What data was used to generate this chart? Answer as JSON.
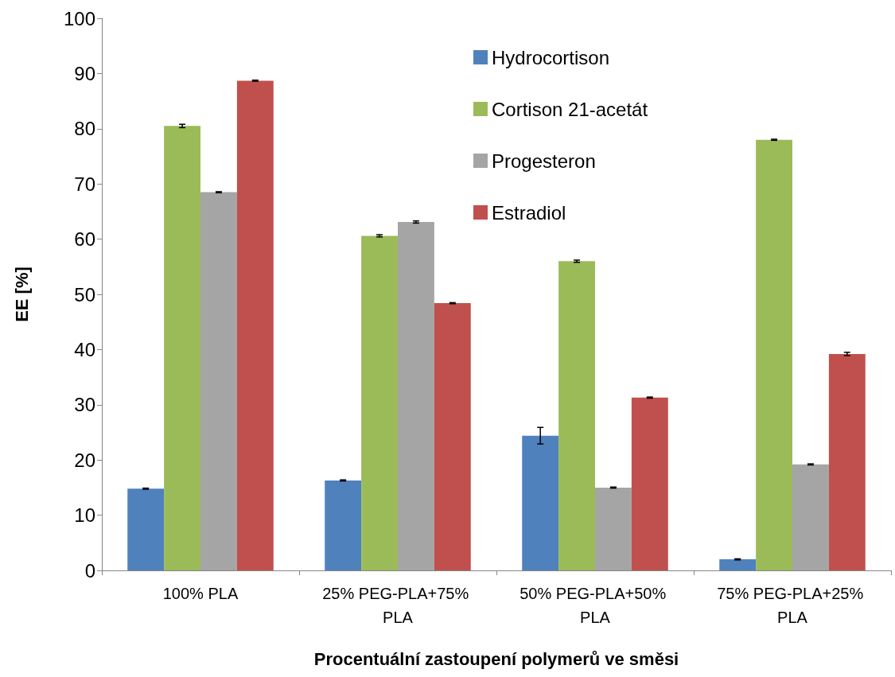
{
  "chart_data": {
    "type": "bar",
    "xlabel": "Procentuální zastoupení polymerů ve směsi",
    "ylabel": "EE [%]",
    "categories": [
      "100% PLA",
      "25% PEG-PLA+75% PLA",
      "50% PEG-PLA+50% PLA",
      "75% PEG-PLA+25% PLA"
    ],
    "series": [
      {
        "name": "Hydrocortison",
        "color": "#4f81bd",
        "values": [
          14.8,
          16.3,
          24.4,
          2.0
        ],
        "errors": [
          0.1,
          0.1,
          1.5,
          0.1
        ]
      },
      {
        "name": "Cortison 21-acetát",
        "color": "#9bbb59",
        "values": [
          80.5,
          60.6,
          56.0,
          78.0
        ],
        "errors": [
          0.3,
          0.2,
          0.2,
          0.1
        ]
      },
      {
        "name": "Progesteron",
        "color": "#a5a5a5",
        "values": [
          68.5,
          63.1,
          15.0,
          19.2
        ],
        "errors": [
          0.1,
          0.2,
          0.1,
          0.1
        ]
      },
      {
        "name": "Estradiol",
        "color": "#c0504d",
        "values": [
          88.7,
          48.4,
          31.3,
          39.2
        ],
        "errors": [
          0.1,
          0.1,
          0.1,
          0.3
        ]
      }
    ],
    "ylim": [
      0,
      100
    ],
    "yticks": [
      0,
      10,
      20,
      30,
      40,
      50,
      60,
      70,
      80,
      90,
      100
    ],
    "grid": false,
    "legend": "top right"
  }
}
